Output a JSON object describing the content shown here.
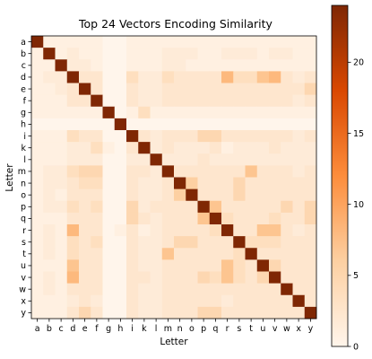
{
  "chart_data": {
    "type": "heatmap",
    "title": "Top 24 Vectors Encoding Similarity",
    "xlabel": "Letter",
    "ylabel": "Letter",
    "x_categories": [
      "a",
      "b",
      "c",
      "d",
      "e",
      "f",
      "g",
      "h",
      "i",
      "k",
      "l",
      "m",
      "n",
      "o",
      "p",
      "q",
      "r",
      "s",
      "t",
      "u",
      "v",
      "w",
      "x",
      "y"
    ],
    "y_categories": [
      "a",
      "b",
      "c",
      "d",
      "e",
      "f",
      "g",
      "h",
      "i",
      "k",
      "l",
      "m",
      "n",
      "o",
      "p",
      "q",
      "r",
      "s",
      "t",
      "u",
      "v",
      "w",
      "x",
      "y"
    ],
    "colormap": "Oranges",
    "colors": {
      "low": "#fff5eb",
      "high": "#7f2704"
    },
    "vmin": 0,
    "vmax": 24,
    "colorbar_ticks": [
      0,
      5,
      10,
      15,
      20
    ],
    "values": [
      [
        24,
        1,
        1,
        1,
        1,
        1,
        0,
        0,
        1,
        1,
        1,
        1,
        1,
        1,
        1,
        1,
        1,
        1,
        1,
        1,
        1,
        1,
        1,
        1
      ],
      [
        1,
        24,
        1,
        2,
        1,
        1,
        0,
        0,
        1,
        1,
        1,
        2,
        2,
        2,
        1,
        1,
        2,
        2,
        2,
        1,
        2,
        2,
        1,
        1
      ],
      [
        1,
        1,
        24,
        2,
        2,
        1,
        0,
        0,
        1,
        1,
        1,
        2,
        2,
        1,
        1,
        1,
        1,
        1,
        1,
        1,
        1,
        1,
        1,
        1
      ],
      [
        1,
        2,
        2,
        24,
        3,
        3,
        0,
        0,
        4,
        2,
        2,
        4,
        3,
        3,
        3,
        3,
        8,
        4,
        4,
        7,
        8,
        3,
        2,
        3
      ],
      [
        1,
        1,
        2,
        3,
        24,
        3,
        0,
        0,
        3,
        2,
        2,
        3,
        3,
        3,
        3,
        3,
        3,
        3,
        3,
        3,
        3,
        3,
        3,
        5
      ],
      [
        1,
        1,
        1,
        3,
        3,
        24,
        0,
        0,
        3,
        2,
        2,
        3,
        3,
        3,
        3,
        3,
        3,
        3,
        3,
        3,
        3,
        3,
        2,
        3
      ],
      [
        1,
        1,
        1,
        1,
        1,
        1,
        24,
        0,
        1,
        4,
        1,
        1,
        1,
        1,
        1,
        1,
        1,
        1,
        1,
        1,
        1,
        1,
        1,
        1
      ],
      [
        0,
        0,
        0,
        0,
        0,
        0,
        0,
        24,
        0,
        0,
        0,
        0,
        0,
        0,
        0,
        0,
        0,
        0,
        0,
        0,
        0,
        0,
        0,
        0
      ],
      [
        1,
        1,
        1,
        4,
        3,
        3,
        0,
        0,
        24,
        3,
        2,
        3,
        3,
        3,
        5,
        5,
        3,
        3,
        3,
        3,
        3,
        3,
        2,
        3
      ],
      [
        1,
        1,
        1,
        2,
        2,
        4,
        1,
        0,
        3,
        24,
        2,
        3,
        2,
        2,
        2,
        3,
        1,
        2,
        2,
        2,
        3,
        2,
        2,
        2
      ],
      [
        1,
        1,
        1,
        2,
        2,
        2,
        0,
        0,
        2,
        2,
        24,
        2,
        2,
        2,
        3,
        2,
        2,
        2,
        2,
        2,
        2,
        2,
        2,
        2
      ],
      [
        1,
        2,
        2,
        4,
        5,
        5,
        0,
        0,
        3,
        3,
        2,
        24,
        3,
        3,
        3,
        3,
        3,
        3,
        7,
        3,
        3,
        3,
        2,
        3
      ],
      [
        1,
        2,
        2,
        3,
        4,
        4,
        0,
        0,
        3,
        2,
        2,
        3,
        24,
        6,
        3,
        3,
        3,
        5,
        3,
        3,
        3,
        3,
        3,
        3
      ],
      [
        1,
        2,
        1,
        3,
        3,
        3,
        0,
        0,
        3,
        2,
        2,
        3,
        6,
        24,
        3,
        3,
        3,
        5,
        3,
        3,
        3,
        3,
        3,
        3
      ],
      [
        1,
        2,
        2,
        4,
        3,
        4,
        0,
        0,
        5,
        2,
        3,
        3,
        3,
        3,
        24,
        7,
        3,
        3,
        3,
        3,
        3,
        5,
        3,
        5
      ],
      [
        1,
        1,
        1,
        3,
        3,
        3,
        0,
        0,
        5,
        3,
        2,
        3,
        3,
        3,
        7,
        24,
        4,
        3,
        3,
        3,
        4,
        3,
        3,
        5
      ],
      [
        1,
        2,
        1,
        8,
        3,
        3,
        0,
        1,
        3,
        1,
        2,
        3,
        3,
        3,
        3,
        4,
        24,
        3,
        3,
        7,
        7,
        3,
        2,
        3
      ],
      [
        1,
        2,
        1,
        4,
        3,
        4,
        0,
        0,
        3,
        2,
        2,
        3,
        5,
        5,
        3,
        3,
        3,
        24,
        4,
        4,
        4,
        3,
        3,
        3
      ],
      [
        1,
        2,
        1,
        4,
        3,
        3,
        0,
        0,
        3,
        2,
        2,
        7,
        3,
        3,
        3,
        3,
        3,
        4,
        24,
        3,
        3,
        3,
        3,
        3
      ],
      [
        1,
        1,
        1,
        7,
        3,
        3,
        0,
        0,
        3,
        2,
        2,
        3,
        3,
        3,
        3,
        3,
        7,
        4,
        3,
        24,
        5,
        3,
        3,
        3
      ],
      [
        1,
        2,
        1,
        8,
        3,
        3,
        0,
        0,
        3,
        3,
        2,
        3,
        3,
        3,
        5,
        4,
        7,
        4,
        3,
        5,
        24,
        3,
        3,
        3
      ],
      [
        1,
        2,
        1,
        3,
        3,
        3,
        0,
        0,
        3,
        2,
        2,
        3,
        3,
        3,
        3,
        3,
        3,
        3,
        3,
        3,
        3,
        24,
        3,
        3
      ],
      [
        1,
        1,
        1,
        2,
        3,
        2,
        0,
        0,
        3,
        2,
        2,
        3,
        3,
        3,
        3,
        3,
        2,
        3,
        3,
        3,
        3,
        3,
        24,
        3
      ],
      [
        1,
        1,
        1,
        3,
        5,
        3,
        0,
        0,
        3,
        2,
        2,
        3,
        3,
        3,
        5,
        5,
        3,
        3,
        3,
        3,
        3,
        3,
        3,
        24
      ]
    ]
  }
}
